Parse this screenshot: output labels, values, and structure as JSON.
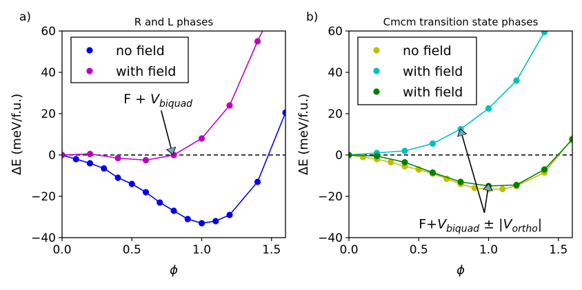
{
  "chart_data": [
    {
      "type": "line",
      "panel_label": "a)",
      "title": "R and L phases",
      "xlabel": "ϕ",
      "ylabel": "ΔE (meV/f.u.)",
      "xlim": [
        0.0,
        1.6
      ],
      "ylim": [
        -40,
        60
      ],
      "xticks": [
        0.0,
        0.5,
        1.0,
        1.5
      ],
      "xtick_labels": [
        "0.0",
        "0.5",
        "1.0",
        "1.5"
      ],
      "yticks": [
        -40,
        -20,
        0,
        20,
        40,
        60
      ],
      "ytick_labels": [
        "−40",
        "−20",
        "0",
        "20",
        "40",
        "60"
      ],
      "zero_line": true,
      "legend_location": "top-left",
      "series": [
        {
          "name": "no field",
          "color": "#0000ee",
          "x": [
            0.0,
            0.1,
            0.2,
            0.3,
            0.4,
            0.5,
            0.6,
            0.7,
            0.8,
            0.9,
            1.0,
            1.1,
            1.2,
            1.4,
            1.6
          ],
          "y": [
            0,
            -2,
            -4,
            -6.5,
            -11,
            -14,
            -18,
            -23,
            -27,
            -31,
            -33,
            -32,
            -29,
            -13,
            20.5
          ],
          "line_x": [
            0.0,
            0.1,
            0.2,
            0.3,
            0.4,
            0.5,
            0.6,
            0.7,
            0.8,
            0.9,
            1.0,
            1.1,
            1.2,
            1.4,
            1.6
          ],
          "line_y": [
            0,
            -2,
            -4,
            -6.5,
            -11,
            -14,
            -18,
            -23,
            -27,
            -31,
            -33,
            -32,
            -29,
            -13,
            20.5
          ]
        },
        {
          "name": "with field",
          "color": "#c000c0",
          "x": [
            0.0,
            0.2,
            0.4,
            0.6,
            0.8,
            1.0,
            1.2,
            1.4
          ],
          "y": [
            0,
            0.5,
            -1.5,
            -2.5,
            0,
            8,
            24,
            55
          ],
          "line_x": [
            0.0,
            0.2,
            0.4,
            0.6,
            0.8,
            1.0,
            1.2,
            1.4,
            1.45
          ],
          "line_y": [
            0,
            0.5,
            -1.5,
            -2.5,
            0,
            8,
            24,
            55,
            62
          ]
        }
      ],
      "annotation": {
        "text_prefix": "F + ",
        "text_var": "V",
        "text_sub": "biquad",
        "text_x": 0.44,
        "text_y": 25,
        "arrow_from": [
          0.71,
          21.5
        ],
        "arrow_to": [
          0.79,
          0.8
        ]
      }
    },
    {
      "type": "line",
      "panel_label": "b)",
      "title": "Cmcm transition state phases",
      "xlabel": "ϕ",
      "ylabel": "ΔE (meV/f.u.)",
      "xlim": [
        0.0,
        1.6
      ],
      "ylim": [
        -40,
        60
      ],
      "xticks": [
        0.0,
        0.5,
        1.0,
        1.5
      ],
      "xtick_labels": [
        "0.0",
        "0.5",
        "1.0",
        "1.5"
      ],
      "yticks": [
        -40,
        -20,
        0,
        20,
        40,
        60
      ],
      "ytick_labels": [
        "−40",
        "−20",
        "0",
        "20",
        "40",
        "60"
      ],
      "zero_line": true,
      "legend_location": "top-left",
      "series": [
        {
          "name": "no field",
          "color": "#bfbf00",
          "x": [
            0.0,
            0.1,
            0.2,
            0.3,
            0.4,
            0.5,
            0.6,
            0.7,
            0.8,
            0.9,
            1.0,
            1.1,
            1.2,
            1.4,
            1.6
          ],
          "y": [
            0,
            -1,
            -2,
            -3.5,
            -5.5,
            -7,
            -9,
            -11.5,
            -14,
            -16,
            -16.5,
            -16.5,
            -15,
            -8.5,
            8
          ],
          "line_x": [
            0.0,
            0.1,
            0.2,
            0.3,
            0.4,
            0.5,
            0.6,
            0.7,
            0.8,
            0.9,
            1.0,
            1.1,
            1.2,
            1.4,
            1.6
          ],
          "line_y": [
            0,
            -1,
            -2,
            -3.5,
            -5.5,
            -7,
            -9,
            -11.5,
            -14,
            -16,
            -16.5,
            -16.5,
            -15,
            -8.5,
            8
          ]
        },
        {
          "name": "with field",
          "color": "#00bfbf",
          "x": [
            0.0,
            0.2,
            0.4,
            0.6,
            0.8,
            1.0,
            1.2,
            1.4
          ],
          "y": [
            0,
            1,
            2,
            5.5,
            12.5,
            22.5,
            36,
            59.5
          ],
          "line_x": [
            0.0,
            0.2,
            0.4,
            0.6,
            0.8,
            1.0,
            1.2,
            1.4,
            1.43
          ],
          "line_y": [
            0,
            1,
            2,
            5.5,
            12.5,
            22.5,
            36,
            59.5,
            62
          ]
        },
        {
          "name": "with field",
          "color": "#008000",
          "x": [
            0.0,
            0.2,
            0.4,
            0.6,
            0.8,
            1.0,
            1.2,
            1.4,
            1.6
          ],
          "y": [
            0,
            -0.5,
            -3.5,
            -8.5,
            -13,
            -15,
            -14.5,
            -7,
            7.5
          ],
          "line_x": [
            0.0,
            0.2,
            0.4,
            0.6,
            0.8,
            1.0,
            1.2,
            1.4,
            1.6
          ],
          "line_y": [
            0,
            -0.5,
            -3.5,
            -8.5,
            -13,
            -15,
            -14.5,
            -7,
            7.5
          ]
        }
      ],
      "annotation": {
        "text_prefix": "F+",
        "text_var": "V",
        "text_sub": "biquad",
        "text_mid": " ± |",
        "text_var2": "V",
        "text_sub2": "ortho",
        "text_end": "|",
        "text_x": 0.5,
        "text_y": -35.5,
        "arrows": [
          {
            "from": [
              0.97,
              -28
            ],
            "to": [
              0.8,
              12
            ]
          },
          {
            "from": [
              0.97,
              -28
            ],
            "to": [
              1.0,
              -14.5
            ]
          }
        ]
      }
    }
  ]
}
